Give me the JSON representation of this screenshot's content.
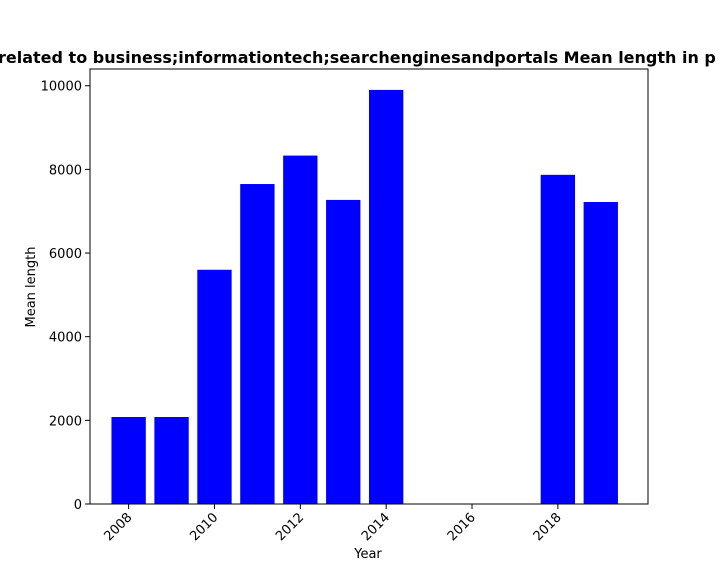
{
  "chart_data": {
    "type": "bar",
    "title": "related to business;informationtech;searchenginesandportals Mean length in p",
    "xlabel": "Year",
    "ylabel": "Mean length",
    "x": [
      2008,
      2009,
      2010,
      2011,
      2012,
      2013,
      2014,
      2018,
      2019
    ],
    "values": [
      2080,
      2080,
      5600,
      7650,
      8330,
      7270,
      9900,
      7870,
      7220
    ],
    "xlim": [
      2007.1,
      2020.1
    ],
    "ylim": [
      0,
      10400
    ],
    "xticks": [
      "2008",
      "2010",
      "2012",
      "2014",
      "2016",
      "2018"
    ],
    "yticks": [
      "0",
      "2000",
      "4000",
      "6000",
      "8000",
      "10000"
    ],
    "bar_color": "#0000ff",
    "x_tick_rotation": 45,
    "grid": false,
    "legend": "none"
  }
}
